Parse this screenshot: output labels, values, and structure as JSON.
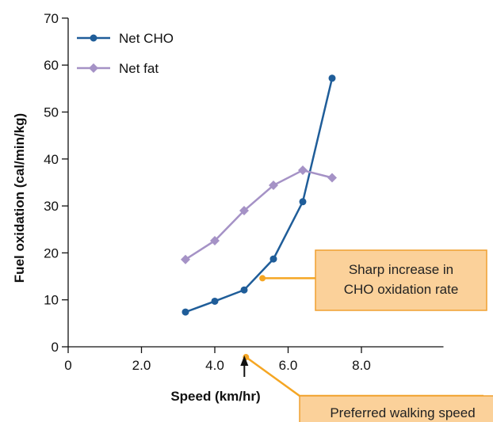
{
  "chart_data": {
    "type": "line",
    "xlabel": "Speed (km/hr)",
    "ylabel": "Fuel oxidation (cal/min/kg)",
    "xlim": [
      0,
      10
    ],
    "ylim": [
      0,
      70
    ],
    "x_ticks": [
      {
        "value": 0,
        "label": "0"
      },
      {
        "value": 2,
        "label": "2.0"
      },
      {
        "value": 4,
        "label": "4.0"
      },
      {
        "value": 6,
        "label": "6.0"
      },
      {
        "value": 8,
        "label": "8.0"
      }
    ],
    "y_ticks": [
      {
        "value": 0,
        "label": "0"
      },
      {
        "value": 10,
        "label": "10"
      },
      {
        "value": 20,
        "label": "20"
      },
      {
        "value": 30,
        "label": "30"
      },
      {
        "value": 40,
        "label": "40"
      },
      {
        "value": 50,
        "label": "50"
      },
      {
        "value": 60,
        "label": "60"
      },
      {
        "value": 70,
        "label": "70"
      }
    ],
    "grid": false,
    "legend": "top-left",
    "series": [
      {
        "name": "Net CHO",
        "marker": "circle",
        "color": "#1f5d99",
        "points": [
          [
            3.2,
            7.4
          ],
          [
            4.0,
            9.7
          ],
          [
            4.8,
            12.1
          ],
          [
            5.6,
            18.7
          ],
          [
            6.4,
            30.9
          ],
          [
            7.2,
            57.2
          ]
        ]
      },
      {
        "name": "Net fat",
        "marker": "diamond",
        "color": "#a592c6",
        "points": [
          [
            3.2,
            18.6
          ],
          [
            4.0,
            22.6
          ],
          [
            4.8,
            29.0
          ],
          [
            5.6,
            34.4
          ],
          [
            6.4,
            37.6
          ],
          [
            7.2,
            36.0
          ]
        ]
      }
    ],
    "annotations": [
      {
        "name": "cho-increase",
        "lines": [
          "Sharp increase in",
          "CHO oxidation rate"
        ],
        "anchor": [
          5.3,
          14.6
        ]
      },
      {
        "name": "preferred-speed",
        "lines": [
          "Preferred walking speed"
        ],
        "anchor": [
          4.85,
          -2.2
        ],
        "arrow_at_x": 4.85
      }
    ],
    "annotation_color": "#f5a623",
    "annotation_fill": "#fbd19a",
    "annotation_border": "#f0a030"
  }
}
